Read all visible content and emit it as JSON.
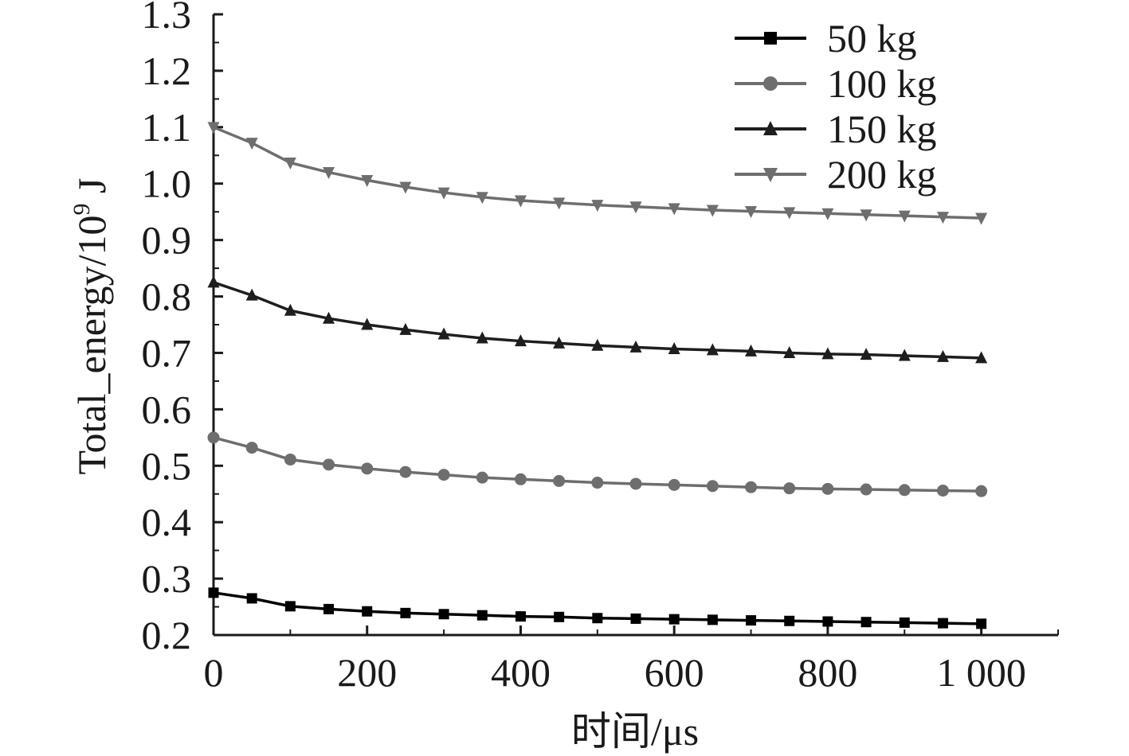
{
  "chart_data": {
    "type": "line",
    "xlabel": "时间/μs",
    "ylabel": {
      "prefix": "Total_energy/10",
      "exponent": "9",
      "unit": " J"
    },
    "xlim": [
      0,
      1100
    ],
    "ylim": [
      0.2,
      1.3
    ],
    "xticks": [
      0,
      200,
      400,
      600,
      800,
      1000
    ],
    "xtick_labels": [
      "0",
      "200",
      "400",
      "600",
      "800",
      "1 000"
    ],
    "yticks": [
      0.2,
      0.3,
      0.4,
      0.5,
      0.6,
      0.7,
      0.8,
      0.9,
      1.0,
      1.1,
      1.2,
      1.3
    ],
    "ytick_labels": [
      "0.2",
      "0.3",
      "0.4",
      "0.5",
      "0.6",
      "0.7",
      "0.8",
      "0.9",
      "1.0",
      "1.1",
      "1.2",
      "1.3"
    ],
    "grid": false,
    "legend_position": "top-right",
    "x": [
      0,
      50,
      100,
      150,
      200,
      250,
      300,
      350,
      400,
      450,
      500,
      550,
      600,
      650,
      700,
      750,
      800,
      850,
      900,
      950,
      1000
    ],
    "series": [
      {
        "name": "50 kg",
        "marker": "square",
        "color": "#000000",
        "values": [
          0.275,
          0.265,
          0.251,
          0.246,
          0.242,
          0.239,
          0.237,
          0.235,
          0.233,
          0.232,
          0.23,
          0.229,
          0.228,
          0.227,
          0.226,
          0.225,
          0.224,
          0.223,
          0.222,
          0.221,
          0.22
        ]
      },
      {
        "name": "100 kg",
        "marker": "circle",
        "color": "#6e6e6e",
        "values": [
          0.55,
          0.532,
          0.511,
          0.502,
          0.495,
          0.489,
          0.484,
          0.479,
          0.476,
          0.473,
          0.47,
          0.468,
          0.466,
          0.464,
          0.462,
          0.46,
          0.459,
          0.458,
          0.457,
          0.456,
          0.455
        ]
      },
      {
        "name": "150 kg",
        "marker": "triangle-up",
        "color": "#1e1e1e",
        "values": [
          0.825,
          0.802,
          0.775,
          0.761,
          0.75,
          0.741,
          0.733,
          0.726,
          0.721,
          0.717,
          0.713,
          0.71,
          0.707,
          0.705,
          0.703,
          0.7,
          0.698,
          0.697,
          0.695,
          0.693,
          0.691
        ]
      },
      {
        "name": "200 kg",
        "marker": "triangle-down",
        "color": "#6e6e6e",
        "values": [
          1.1,
          1.072,
          1.037,
          1.02,
          1.006,
          0.994,
          0.984,
          0.976,
          0.97,
          0.966,
          0.962,
          0.959,
          0.956,
          0.953,
          0.951,
          0.949,
          0.947,
          0.945,
          0.943,
          0.941,
          0.939
        ]
      }
    ]
  }
}
